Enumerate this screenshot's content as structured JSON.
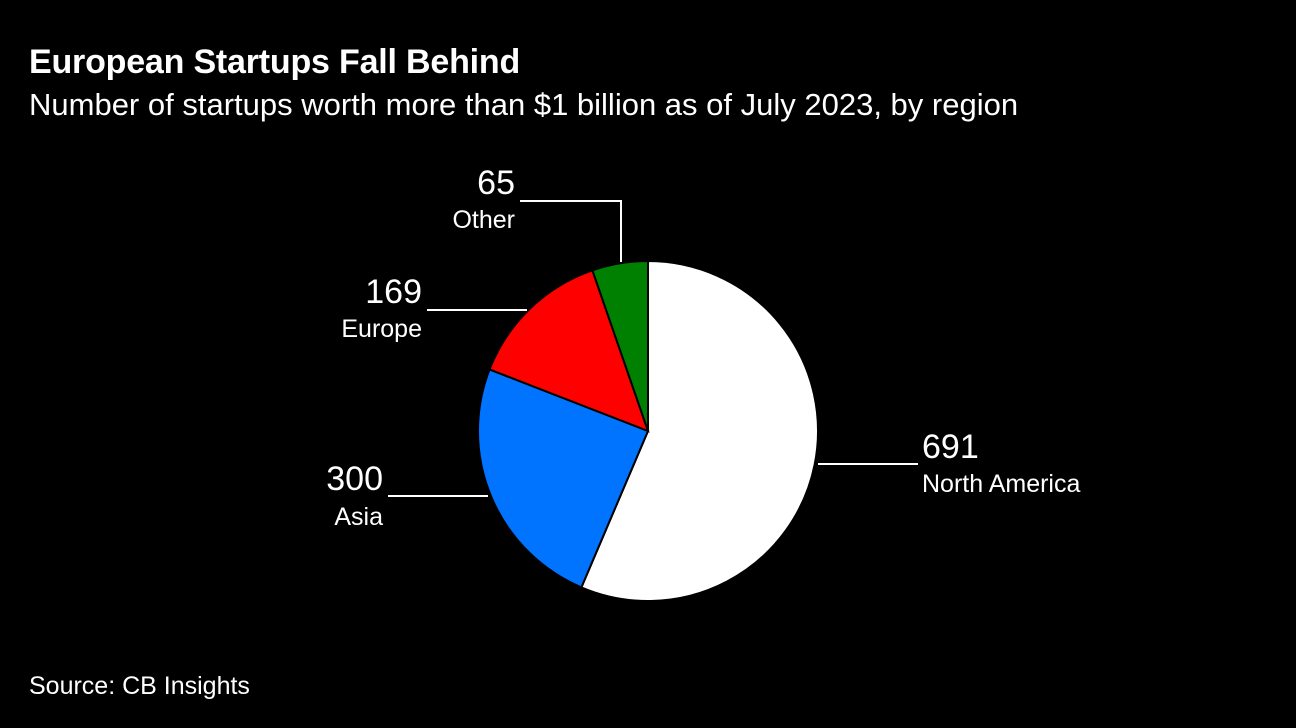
{
  "title": "European Startups Fall Behind",
  "subtitle": "Number of startups worth more than $1 billion as of July 2023, by region",
  "source": "Source: CB Insights",
  "chart_data": {
    "type": "pie",
    "title": "European Startups Fall Behind",
    "subtitle": "Number of startups worth more than $1 billion as of July 2023, by region",
    "start": "12 o'clock",
    "direction": "clockwise",
    "slices": [
      {
        "label": "North America",
        "value": 691,
        "color": "#ffffff"
      },
      {
        "label": "Asia",
        "value": 300,
        "color": "#0073ff"
      },
      {
        "label": "Europe",
        "value": 169,
        "color": "#ff0000"
      },
      {
        "label": "Other",
        "value": 65,
        "color": "#008000"
      }
    ]
  }
}
